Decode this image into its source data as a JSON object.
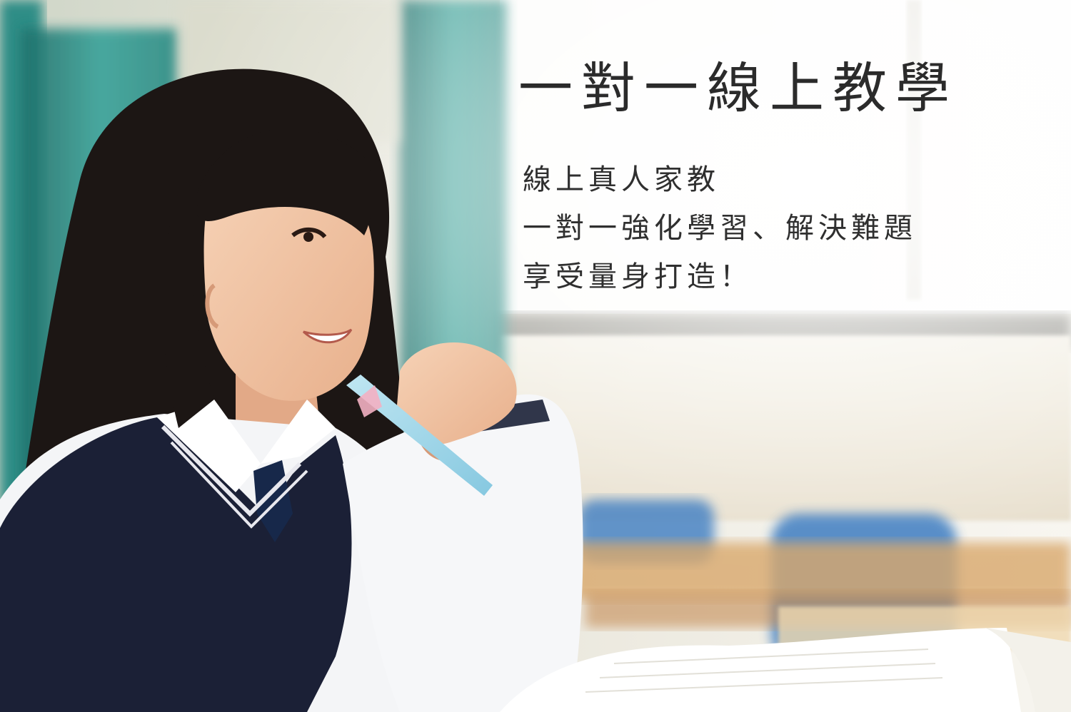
{
  "hero": {
    "title": "一對一線上教學",
    "subtitle_lines": [
      "線上真人家教",
      "一對一強化學習、解決難題",
      "享受量身打造！"
    ]
  },
  "colors": {
    "text": "#2b2b2b",
    "curtain": "#2f8f86",
    "skin": "#f2c6a4",
    "hair": "#1c1614",
    "uniform": "#1b2036",
    "shirt": "#f6f7f9",
    "chair": "#4a84c4",
    "desk": "#d9a86c"
  }
}
